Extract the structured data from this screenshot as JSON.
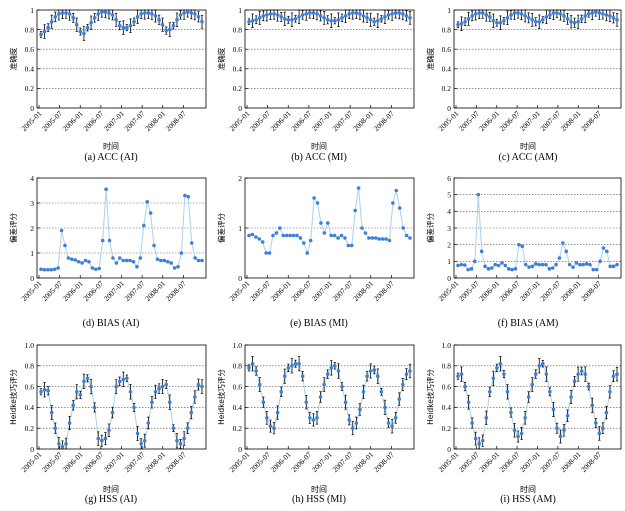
{
  "chart_data": [
    {
      "id": "a",
      "type": "line",
      "caption": "(a) ACC (AI)",
      "ylabel": "准确度",
      "xlabel": "时间",
      "ylim": [
        0,
        1
      ],
      "yticks": [
        "0",
        "0.2",
        "0.4",
        "0.6",
        "0.8",
        "1"
      ],
      "ytick_values": [
        0,
        0.2,
        0.4,
        0.6,
        0.8,
        1
      ],
      "xticks": [
        "2005-01",
        "2005-07",
        "2006-01",
        "2006-07",
        "2007-01",
        "2007-07",
        "2008-01",
        "2008-07"
      ],
      "grid": "horizontal-dotted",
      "error_bars": true,
      "series": [
        {
          "values": [
            0.75,
            0.78,
            0.82,
            0.88,
            0.93,
            0.96,
            0.97,
            0.97,
            0.96,
            0.92,
            0.85,
            0.78,
            0.76,
            0.82,
            0.87,
            0.92,
            0.96,
            0.98,
            0.98,
            0.97,
            0.95,
            0.9,
            0.84,
            0.82,
            0.82,
            0.84,
            0.88,
            0.93,
            0.96,
            0.97,
            0.97,
            0.96,
            0.94,
            0.9,
            0.85,
            0.79,
            0.8,
            0.84,
            0.9,
            0.95,
            0.97,
            0.98,
            0.97,
            0.96,
            0.93,
            0.88
          ]
        }
      ]
    },
    {
      "id": "b",
      "type": "line",
      "caption": "(b) ACC (MI)",
      "ylabel": "准确度",
      "xlabel": "时间",
      "ylim": [
        0,
        1
      ],
      "yticks": [
        "0",
        "0.2",
        "0.4",
        "0.6",
        "0.8",
        "1"
      ],
      "ytick_values": [
        0,
        0.2,
        0.4,
        0.6,
        0.8,
        1
      ],
      "xticks": [
        "2005-01",
        "2005-07",
        "2006-01",
        "2006-07",
        "2007-01",
        "2007-07",
        "2008-01",
        "2008-07"
      ],
      "grid": "horizontal-dotted",
      "error_bars": true,
      "series": [
        {
          "values": [
            0.88,
            0.89,
            0.9,
            0.92,
            0.94,
            0.95,
            0.96,
            0.96,
            0.95,
            0.93,
            0.91,
            0.9,
            0.9,
            0.91,
            0.93,
            0.95,
            0.96,
            0.97,
            0.97,
            0.96,
            0.94,
            0.92,
            0.9,
            0.89,
            0.89,
            0.9,
            0.92,
            0.94,
            0.96,
            0.97,
            0.97,
            0.96,
            0.94,
            0.92,
            0.9,
            0.88,
            0.89,
            0.91,
            0.93,
            0.95,
            0.96,
            0.97,
            0.97,
            0.96,
            0.94,
            0.92
          ]
        }
      ]
    },
    {
      "id": "c",
      "type": "line",
      "caption": "(c) ACC (AM)",
      "ylabel": "准确度",
      "xlabel": "时间",
      "ylim": [
        0,
        1
      ],
      "yticks": [
        "0",
        "0.2",
        "0.4",
        "0.6",
        "0.8",
        "1"
      ],
      "ytick_values": [
        0,
        0.2,
        0.4,
        0.6,
        0.8,
        1
      ],
      "xticks": [
        "2005-01",
        "2005-07",
        "2006-01",
        "2006-07",
        "2007-01",
        "2007-07",
        "2008-01",
        "2008-07"
      ],
      "grid": "horizontal-dotted",
      "error_bars": true,
      "series": [
        {
          "values": [
            0.85,
            0.86,
            0.88,
            0.91,
            0.94,
            0.96,
            0.97,
            0.97,
            0.95,
            0.93,
            0.89,
            0.87,
            0.87,
            0.89,
            0.92,
            0.95,
            0.97,
            0.97,
            0.96,
            0.94,
            0.92,
            0.9,
            0.88,
            0.88,
            0.9,
            0.93,
            0.95,
            0.97,
            0.97,
            0.96,
            0.94,
            0.91,
            0.88,
            0.87,
            0.88,
            0.91,
            0.94,
            0.96,
            0.97,
            0.98,
            0.97,
            0.96,
            0.95,
            0.94,
            0.92,
            0.9
          ]
        }
      ]
    },
    {
      "id": "d",
      "type": "line",
      "caption": "(d) BIAS (AI)",
      "ylabel": "偏差评分",
      "xlabel": "",
      "ylim": [
        0,
        4
      ],
      "yticks": [
        "0",
        "1",
        "2",
        "3",
        "4"
      ],
      "ytick_values": [
        0,
        1,
        2,
        3,
        4
      ],
      "xticks": [
        "2005-01",
        "2005-07",
        "2006-01",
        "2006-07",
        "2007-01",
        "2007-07",
        "2008-01",
        "2008-07"
      ],
      "grid": "horizontal-dotted",
      "error_bars": false,
      "series": [
        {
          "values": [
            0.35,
            0.33,
            0.33,
            0.33,
            0.35,
            0.4,
            1.9,
            1.3,
            0.8,
            0.75,
            0.72,
            0.65,
            0.6,
            0.7,
            0.65,
            0.4,
            0.35,
            0.38,
            1.5,
            3.55,
            1.5,
            0.8,
            0.6,
            0.8,
            0.7,
            0.7,
            0.7,
            0.65,
            0.45,
            0.8,
            2.1,
            3.05,
            2.6,
            1.3,
            0.75,
            0.7,
            0.7,
            0.65,
            0.6,
            0.4,
            0.45,
            1.0,
            3.3,
            3.25,
            1.4,
            0.8,
            0.7,
            0.7
          ]
        }
      ]
    },
    {
      "id": "e",
      "type": "line",
      "caption": "(e) BIAS (MI)",
      "ylabel": "偏差评分",
      "xlabel": "",
      "ylim": [
        0,
        2
      ],
      "yticks": [
        "0",
        "1",
        "2"
      ],
      "ytick_values": [
        0,
        1,
        2
      ],
      "xticks": [
        "2005-01",
        "2005-07",
        "2006-01",
        "2006-07",
        "2007-01",
        "2007-07",
        "2008-01",
        "2008-07"
      ],
      "grid": "horizontal-dotted",
      "error_bars": false,
      "series": [
        {
          "values": [
            0.85,
            0.87,
            0.82,
            0.78,
            0.72,
            0.5,
            0.5,
            0.85,
            0.9,
            1.0,
            0.85,
            0.85,
            0.85,
            0.85,
            0.85,
            0.8,
            0.7,
            0.5,
            0.75,
            1.6,
            1.5,
            1.1,
            0.9,
            1.1,
            0.85,
            0.85,
            0.8,
            0.85,
            0.8,
            0.65,
            0.65,
            1.35,
            1.8,
            1.0,
            0.9,
            0.8,
            0.8,
            0.8,
            0.78,
            0.78,
            0.78,
            0.75,
            1.5,
            1.75,
            1.4,
            1.0,
            0.85,
            0.8
          ]
        }
      ]
    },
    {
      "id": "f",
      "type": "line",
      "caption": "(f) BIAS (AM)",
      "ylabel": "偏差评分",
      "xlabel": "",
      "ylim": [
        0,
        6
      ],
      "yticks": [
        "0",
        "1",
        "2",
        "3",
        "4",
        "5",
        "6"
      ],
      "ytick_values": [
        0,
        1,
        2,
        3,
        4,
        5,
        6
      ],
      "xticks": [
        "2005-01",
        "2005-07",
        "2006-01",
        "2006-07",
        "2007-01",
        "2007-07",
        "2008-01",
        "2008-07"
      ],
      "grid": "horizontal-dotted",
      "error_bars": false,
      "series": [
        {
          "values": [
            0.75,
            0.8,
            0.78,
            0.5,
            0.55,
            1.0,
            5.0,
            1.6,
            0.7,
            0.55,
            0.6,
            0.8,
            0.75,
            0.9,
            0.75,
            0.55,
            0.5,
            0.55,
            2.0,
            1.9,
            0.8,
            0.65,
            0.7,
            0.85,
            0.8,
            0.8,
            0.8,
            0.55,
            0.6,
            0.8,
            1.2,
            2.1,
            1.6,
            0.8,
            0.65,
            0.9,
            0.8,
            0.8,
            0.85,
            0.8,
            0.5,
            0.5,
            1.0,
            1.8,
            1.6,
            0.7,
            0.7,
            0.8
          ]
        }
      ]
    },
    {
      "id": "g",
      "type": "line",
      "caption": "(g) HSS (AI)",
      "ylabel": "Heidke技巧评分",
      "xlabel": "时间",
      "ylim": [
        0,
        1
      ],
      "yticks": [
        "0",
        "0.2",
        "0.4",
        "0.6",
        "0.8",
        "1.0"
      ],
      "ytick_values": [
        0,
        0.2,
        0.4,
        0.6,
        0.8,
        1
      ],
      "xticks": [
        "2005-01",
        "2005-07",
        "2006-01",
        "2006-07",
        "2007-01",
        "2007-07",
        "2008-01",
        "2008-07"
      ],
      "grid": "horizontal-dotted",
      "error_bars": true,
      "series": [
        {
          "values": [
            0.55,
            0.57,
            0.56,
            0.35,
            0.2,
            0.05,
            0.02,
            0.05,
            0.25,
            0.42,
            0.55,
            0.52,
            0.65,
            0.68,
            0.6,
            0.4,
            0.1,
            0.08,
            0.1,
            0.18,
            0.35,
            0.6,
            0.65,
            0.67,
            0.68,
            0.55,
            0.4,
            0.15,
            0.05,
            0.08,
            0.25,
            0.45,
            0.55,
            0.58,
            0.6,
            0.62,
            0.45,
            0.2,
            0.08,
            0.05,
            0.1,
            0.2,
            0.35,
            0.5,
            0.62,
            0.6
          ]
        }
      ]
    },
    {
      "id": "h",
      "type": "line",
      "caption": "(h) HSS (MI)",
      "ylabel": "Heidke技巧评分",
      "xlabel": "时间",
      "ylim": [
        0,
        1
      ],
      "yticks": [
        "0",
        "0.2",
        "0.4",
        "0.6",
        "0.8",
        "1.0"
      ],
      "ytick_values": [
        0,
        0.2,
        0.4,
        0.6,
        0.8,
        1
      ],
      "xticks": [
        "2005-01",
        "2005-07",
        "2006-01",
        "2006-07",
        "2007-01",
        "2007-07",
        "2008-01",
        "2008-07"
      ],
      "grid": "horizontal-dotted",
      "error_bars": true,
      "series": [
        {
          "values": [
            0.78,
            0.82,
            0.75,
            0.62,
            0.45,
            0.3,
            0.22,
            0.2,
            0.35,
            0.55,
            0.7,
            0.78,
            0.8,
            0.82,
            0.82,
            0.7,
            0.45,
            0.3,
            0.28,
            0.3,
            0.5,
            0.62,
            0.72,
            0.78,
            0.8,
            0.75,
            0.6,
            0.45,
            0.28,
            0.2,
            0.25,
            0.38,
            0.55,
            0.7,
            0.75,
            0.76,
            0.7,
            0.55,
            0.4,
            0.25,
            0.22,
            0.3,
            0.48,
            0.62,
            0.72,
            0.75
          ]
        }
      ]
    },
    {
      "id": "i",
      "type": "line",
      "caption": "(i) HSS (AM)",
      "ylabel": "Heidke技巧评分",
      "xlabel": "时间",
      "ylim": [
        0,
        1
      ],
      "yticks": [
        "0",
        "0.2",
        "0.4",
        "0.6",
        "0.8",
        "1.0"
      ],
      "ytick_values": [
        0,
        0.2,
        0.4,
        0.6,
        0.8,
        1
      ],
      "xticks": [
        "2005-01",
        "2005-07",
        "2006-01",
        "2006-07",
        "2007-01",
        "2007-07",
        "2008-01",
        "2008-07"
      ],
      "grid": "horizontal-dotted",
      "error_bars": true,
      "series": [
        {
          "values": [
            0.7,
            0.72,
            0.6,
            0.45,
            0.25,
            0.1,
            0.05,
            0.08,
            0.3,
            0.55,
            0.68,
            0.78,
            0.82,
            0.72,
            0.55,
            0.35,
            0.18,
            0.12,
            0.15,
            0.3,
            0.5,
            0.62,
            0.72,
            0.8,
            0.82,
            0.72,
            0.55,
            0.38,
            0.2,
            0.12,
            0.18,
            0.32,
            0.5,
            0.65,
            0.72,
            0.75,
            0.72,
            0.6,
            0.42,
            0.25,
            0.15,
            0.2,
            0.35,
            0.55,
            0.7,
            0.72
          ]
        }
      ]
    }
  ]
}
